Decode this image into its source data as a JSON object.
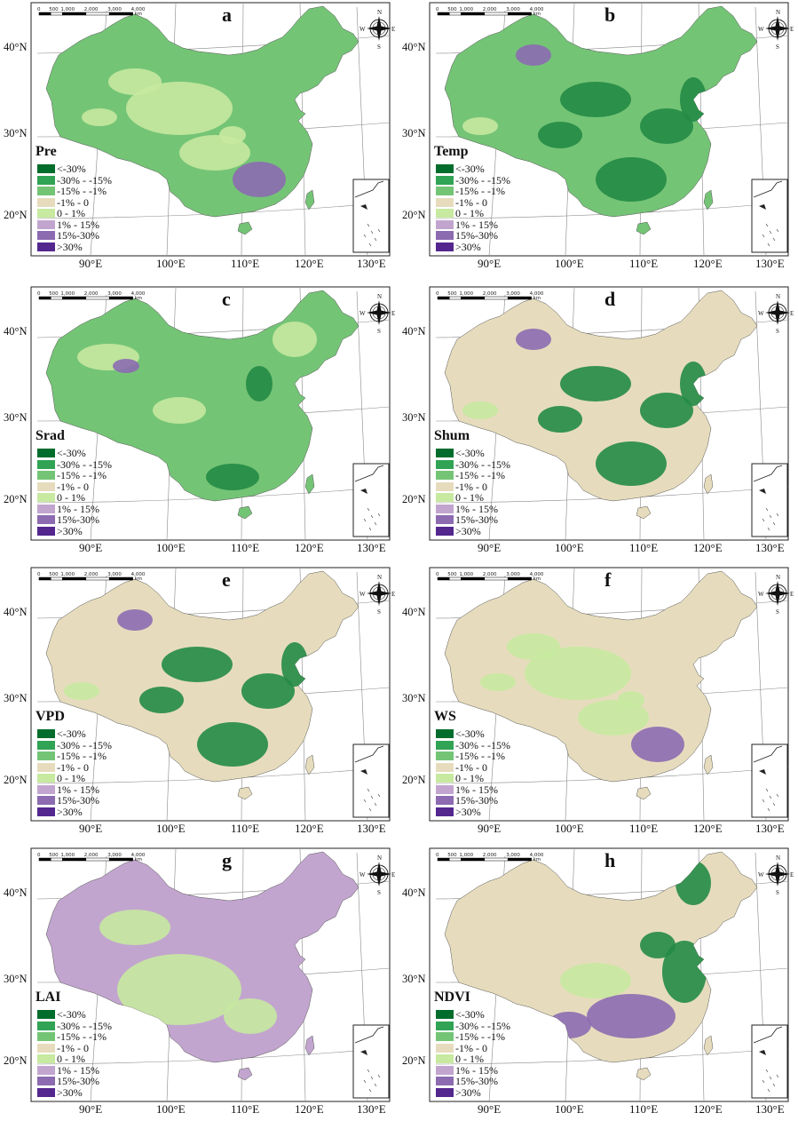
{
  "panels": [
    {
      "letter": "a",
      "variable": "Pre",
      "scheme": "green",
      "dark": "light"
    },
    {
      "letter": "b",
      "variable": "Temp",
      "scheme": "green",
      "dark": "dark"
    },
    {
      "letter": "c",
      "variable": "Srad",
      "scheme": "green",
      "dark": "mid"
    },
    {
      "letter": "d",
      "variable": "Shum",
      "scheme": "beige",
      "dark": "dark"
    },
    {
      "letter": "e",
      "variable": "VPD",
      "scheme": "beige",
      "dark": "dark"
    },
    {
      "letter": "f",
      "variable": "WS",
      "scheme": "beige",
      "dark": "light"
    },
    {
      "letter": "g",
      "variable": "LAI",
      "scheme": "lilac",
      "dark": "none"
    },
    {
      "letter": "h",
      "variable": "NDVI",
      "scheme": "beige",
      "dark": "mixed"
    }
  ],
  "legend": [
    {
      "label": "<-30%",
      "color": "#006d2c"
    },
    {
      "label": "-30% - -15%",
      "color": "#31a354"
    },
    {
      "label": "-15% - -1%",
      "color": "#74c476"
    },
    {
      "label": "-1% - 0",
      "color": "#e6dcbd"
    },
    {
      "label": "0 - 1%",
      "color": "#c7e9a0"
    },
    {
      "label": "1% - 15%",
      "color": "#c2a5cf"
    },
    {
      "label": "15%-30%",
      "color": "#8c6bb1"
    },
    {
      "label": ">30%",
      "color": "#54278f"
    }
  ],
  "latitude_labels": [
    "40°N",
    "30°N",
    "20°N"
  ],
  "longitude_labels": [
    "90°E",
    "100°E",
    "110°E",
    "120°E",
    "130°E"
  ],
  "compass": {
    "n": "N",
    "s": "S",
    "e": "E",
    "w": "W"
  },
  "scale_bar": {
    "ticks": [
      "0",
      "500",
      "1,000",
      "2,000",
      "3,000",
      "4,000"
    ],
    "unit": "km"
  },
  "colors": {
    "green_base": "#74c476",
    "beige_base": "#e6dcbd",
    "lilac_base": "#c2a5cf",
    "dark_green": "#238b45",
    "purple": "#8c6bb1",
    "light_green": "#c7e9a0"
  }
}
